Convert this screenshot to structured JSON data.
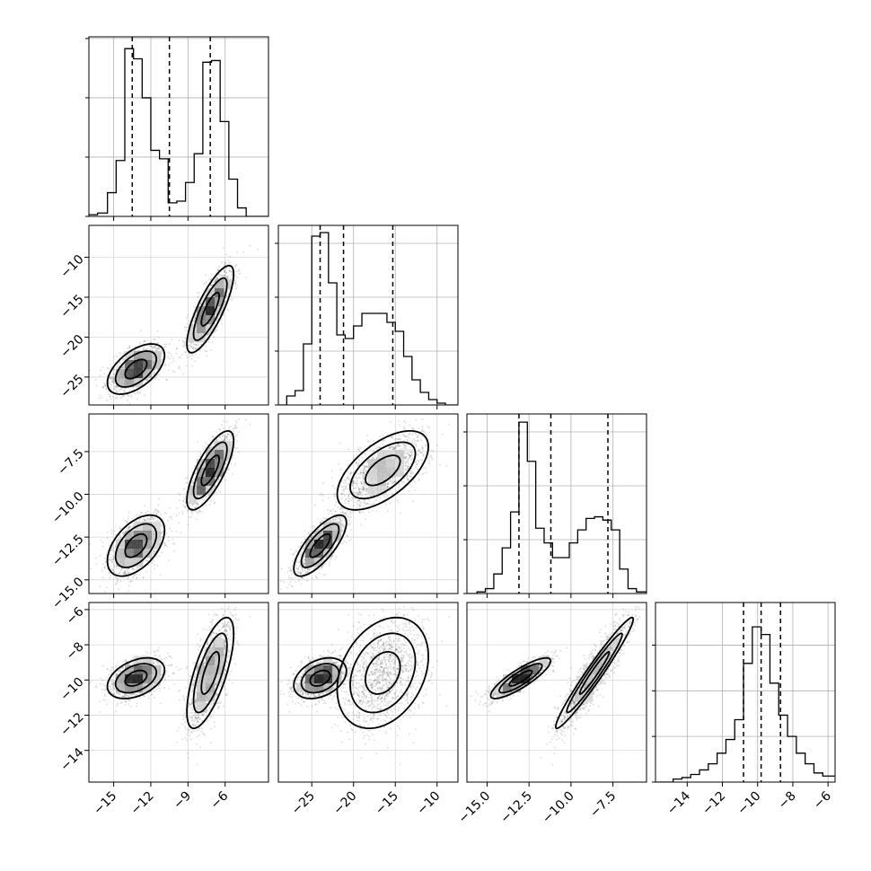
{
  "chart_data": {
    "type": "corner",
    "grid": true,
    "quantiles": [
      0.16,
      0.5,
      0.84
    ],
    "variables": [
      {
        "range": [
          -17,
          -2.5
        ],
        "ticks": [
          -15,
          -12,
          -9,
          -6
        ],
        "tick_labels": [
          "−15",
          "−12",
          "−9",
          "−6"
        ],
        "quantile_values": [
          -13.5,
          -10.5,
          -7.2
        ],
        "hist_edges": [
          -17,
          -16.3,
          -15.5,
          -14.8,
          -14.1,
          -13.4,
          -12.7,
          -12.0,
          -11.3,
          -10.6,
          -9.9,
          -9.2,
          -8.5,
          -7.8,
          -7.1,
          -6.4,
          -5.7,
          -5.0,
          -4.3,
          -3.6,
          -2.5
        ],
        "hist_counts": [
          1,
          2,
          14,
          33,
          99,
          93,
          70,
          39,
          34,
          8,
          9,
          20,
          37,
          91,
          92,
          56,
          22,
          5,
          0,
          0
        ],
        "hist_ymax": 106,
        "hist_ticks": [
          0,
          35,
          70,
          105
        ]
      },
      {
        "range": [
          -29,
          -7.5
        ],
        "ticks": [
          -25,
          -20,
          -15,
          -10
        ],
        "tick_labels": [
          "−25",
          "−20",
          "−15",
          "−10"
        ],
        "quantile_values": [
          -24,
          -21.2,
          -15.3
        ],
        "hist_edges": [
          -29,
          -28,
          -27,
          -26,
          -25,
          -24,
          -23,
          -22,
          -21,
          -20,
          -19,
          -18,
          -17,
          -16,
          -15,
          -14,
          -13,
          -12,
          -11,
          -10,
          -9,
          -7.5
        ],
        "hist_counts": [
          0,
          5,
          8,
          34,
          94,
          96,
          68,
          39,
          37,
          44,
          51,
          51,
          51,
          46,
          41,
          27,
          14,
          7,
          3,
          1,
          0
        ],
        "hist_ymax": 100,
        "hist_ticks": [
          0,
          30,
          60,
          90
        ]
      },
      {
        "range": [
          -16.2,
          -5.5
        ],
        "ticks": [
          -15,
          -12.5,
          -10,
          -7.5
        ],
        "tick_labels": [
          "−15.0",
          "−12.5",
          "−10.0",
          "−7.5"
        ],
        "quantile_values": [
          -13.1,
          -11.2,
          -7.8
        ],
        "hist_edges": [
          -16.2,
          -15.6,
          -15.1,
          -14.6,
          -14.1,
          -13.6,
          -13.1,
          -12.6,
          -12.1,
          -11.6,
          -11.1,
          -10.6,
          -10.1,
          -9.6,
          -9.1,
          -8.6,
          -8.1,
          -7.6,
          -7.1,
          -6.6,
          -6.1,
          -5.5
        ],
        "hist_counts": [
          0,
          1,
          3,
          12,
          28,
          50,
          105,
          81,
          40,
          31,
          22,
          22,
          31,
          39,
          46,
          47,
          45,
          39,
          15,
          3,
          1
        ],
        "hist_ymax": 110,
        "hist_ticks": [
          0,
          33,
          66,
          99
        ]
      },
      {
        "range": [
          -15.8,
          -5.6
        ],
        "ticks": [
          -14,
          -12,
          -10,
          -8,
          -6
        ],
        "tick_labels": [
          "−14",
          "−12",
          "−10",
          "−8",
          "−6"
        ],
        "quantile_values": [
          -10.8,
          -9.8,
          -8.7
        ],
        "hist_edges": [
          -15.8,
          -15.3,
          -14.8,
          -14.3,
          -13.8,
          -13.3,
          -12.8,
          -12.3,
          -11.8,
          -11.3,
          -10.8,
          -10.3,
          -9.8,
          -9.3,
          -8.8,
          -8.3,
          -7.8,
          -7.3,
          -6.8,
          -6.3,
          -5.6
        ],
        "hist_counts": [
          0,
          0,
          2,
          3,
          5,
          8,
          12,
          19,
          28,
          41,
          78,
          102,
          97,
          65,
          44,
          30,
          19,
          12,
          6,
          4
        ],
        "hist_ymax": 118,
        "hist_ticks": [
          0,
          30,
          60,
          90
        ]
      }
    ],
    "panel_ylims": {
      "1": [
        -28.5,
        -6
      ],
      "2": [
        -15.8,
        -5.3
      ],
      "3": [
        -15.8,
        -5.6
      ]
    },
    "panel_yticks": {
      "1": {
        "ticks": [
          -25,
          -20,
          -15,
          -10
        ],
        "labels": [
          "−25",
          "−20",
          "−15",
          "−10"
        ]
      },
      "2": {
        "ticks": [
          -15,
          -12.5,
          -10,
          -7.5
        ],
        "labels": [
          "−15.0",
          "−12.5",
          "−10.0",
          "−7.5"
        ]
      },
      "3": {
        "ticks": [
          -14,
          -12,
          -10,
          -8,
          -6
        ],
        "labels": [
          "−14",
          "−12",
          "−10",
          "−8",
          "−6"
        ]
      }
    },
    "modes": [
      {
        "weight": 0.5,
        "mean": [
          -13.2,
          -24.0,
          -13.0,
          -9.9
        ],
        "sd": [
          1.1,
          1.5,
          0.85,
          0.55
        ],
        "corr": [
          [
            1,
            0.55,
            0.5,
            0.4
          ],
          [
            0.55,
            1,
            0.75,
            0.35
          ],
          [
            0.5,
            0.75,
            1,
            0.85
          ],
          [
            0.4,
            0.35,
            0.85,
            1
          ]
        ]
      },
      {
        "weight": 0.5,
        "mean": [
          -7.2,
          -16.5,
          -8.6,
          -9.6
        ],
        "sd": [
          0.9,
          2.6,
          1.1,
          1.5
        ],
        "corr": [
          [
            1,
            0.8,
            0.75,
            0.7
          ],
          [
            0.8,
            1,
            0.6,
            0.3
          ],
          [
            0.75,
            0.6,
            1,
            0.97
          ],
          [
            0.7,
            0.3,
            0.97,
            1
          ]
        ]
      }
    ],
    "contour_levels_sigma": [
      0.8,
      1.5,
      2.1
    ]
  }
}
